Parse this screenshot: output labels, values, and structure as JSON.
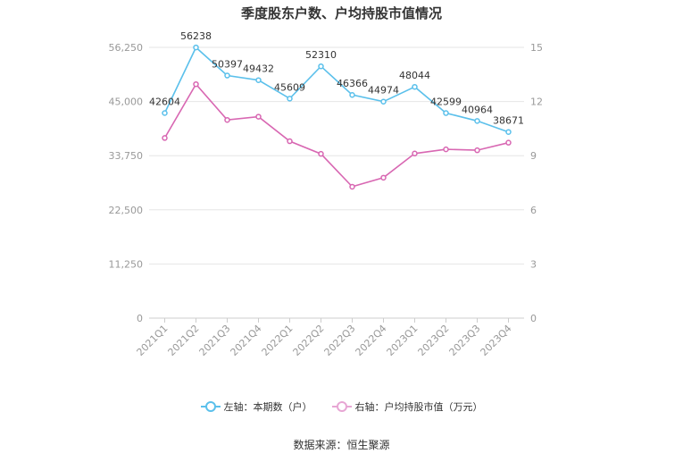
{
  "chart_data": {
    "type": "line",
    "title": "季度股东户数、户均持股市值情况",
    "categories": [
      "2021Q1",
      "2021Q2",
      "2021Q3",
      "2021Q4",
      "2022Q1",
      "2022Q2",
      "2022Q3",
      "2022Q4",
      "2023Q1",
      "2023Q2",
      "2023Q3",
      "2023Q4"
    ],
    "y_left": {
      "ticks": [
        "0",
        "11,250",
        "22,500",
        "33,750",
        "45,000",
        "56,250"
      ],
      "ylim": [
        0,
        56250
      ]
    },
    "y_right": {
      "ticks": [
        "0",
        "3",
        "6",
        "9",
        "12",
        "15"
      ],
      "ylim": [
        0,
        15
      ]
    },
    "series": [
      {
        "name": "左轴：本期数（户）",
        "axis": "left",
        "color": "#5bc0eb",
        "values": [
          42604,
          56238,
          50397,
          49432,
          45609,
          52310,
          46366,
          44974,
          48044,
          42599,
          40964,
          38671
        ],
        "labels": [
          "42604",
          "56238",
          "50397",
          "49432",
          "45609",
          "52310",
          "46366",
          "44974",
          "48044",
          "42599",
          "40964",
          "38671"
        ]
      },
      {
        "name": "右轴：户均持股市值（万元）",
        "axis": "right",
        "color": "#d867b2",
        "values": [
          9.98,
          12.96,
          10.98,
          11.16,
          9.8,
          9.1,
          7.28,
          7.78,
          9.12,
          9.35,
          9.3,
          9.72
        ]
      }
    ],
    "grid": true,
    "legend_position": "bottom"
  },
  "legend": {
    "left_label": "左轴：本期数（户）",
    "right_label": "右轴：户均持股市值（万元）"
  },
  "source": "数据来源：恒生聚源"
}
